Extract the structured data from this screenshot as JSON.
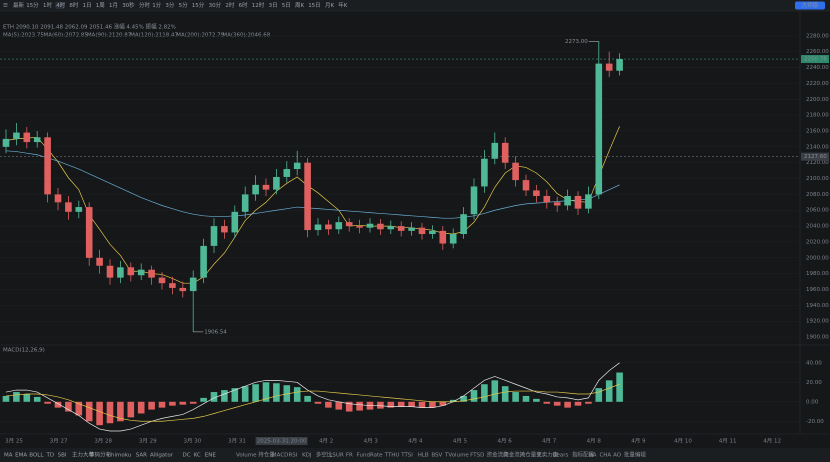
{
  "toolbar": {
    "items": [
      "最新",
      "15分",
      "1时",
      "4时",
      "8时",
      "1日",
      "1周",
      "1月",
      "30秒",
      "分时",
      "1分",
      "3分",
      "5分",
      "15分",
      "30分",
      "2时",
      "6时",
      "12时",
      "3日",
      "5日",
      "周K",
      "15日",
      "月K",
      "年K"
    ],
    "active": 3,
    "button": "大师版"
  },
  "legend": {
    "summary": "ETH 2090.10  2091.48  2062.09  2051.46  涨幅 4.45%  振幅 2.82%",
    "ma_entries": [
      {
        "text": "MA(5):2023.75",
        "color": "#e6c84a"
      },
      {
        "text": "MA(60):2072.85",
        "color": "#d86fb0"
      },
      {
        "text": "MA(90):2120.87",
        "color": "#c9c36a"
      },
      {
        "text": "MA(120):2118.47",
        "color": "#6ab0d8"
      },
      {
        "text": "MA(200):2072.79",
        "color": "#8ad0a0"
      },
      {
        "text": "MA(360):2046.68",
        "color": "#e0843c"
      }
    ]
  },
  "chart_data": [
    {
      "type": "candlestick",
      "up_color": "#4fb896",
      "down_color": "#e0605f",
      "ylim": [
        1890,
        2300
      ],
      "yticks": [
        {
          "value": 1900,
          "label": "1900.00"
        },
        {
          "value": 1920,
          "label": "1920.00"
        },
        {
          "value": 1940,
          "label": "1940.00"
        },
        {
          "value": 1960,
          "label": "1960.00"
        },
        {
          "value": 1980,
          "label": "1980.00"
        },
        {
          "value": 2000,
          "label": "2000.00"
        },
        {
          "value": 2020,
          "label": "2020.00"
        },
        {
          "value": 2040,
          "label": "2040.00"
        },
        {
          "value": 2060,
          "label": "2060.00"
        },
        {
          "value": 2080,
          "label": "2080.00"
        },
        {
          "value": 2100,
          "label": "2100.00"
        },
        {
          "value": 2120,
          "label": "2120.00"
        },
        {
          "value": 2140,
          "label": "2140.00"
        },
        {
          "value": 2160,
          "label": "2160.00"
        },
        {
          "value": 2180,
          "label": "2180.00"
        },
        {
          "value": 2200,
          "label": "2200.00"
        },
        {
          "value": 2220,
          "label": "2220.00"
        },
        {
          "value": 2240,
          "label": "2240.00"
        },
        {
          "value": 2260,
          "label": "2260.00"
        },
        {
          "value": 2280,
          "label": "2280.00"
        }
      ],
      "opens": [
        2140,
        2150,
        2158,
        2146,
        2152,
        2080,
        2070,
        2058,
        2064,
        2000,
        1990,
        1975,
        1988,
        1978,
        1985,
        1975,
        1968,
        1962,
        1958,
        1975,
        2015,
        2040,
        2032,
        2058,
        2080,
        2092,
        2086,
        2102,
        2112,
        2120,
        2035,
        2042,
        2036,
        2045,
        2040,
        2038,
        2043,
        2036,
        2040,
        2034,
        2038,
        2030,
        2034,
        2018,
        2030,
        2055,
        2090,
        2125,
        2145,
        2120,
        2098,
        2085,
        2078,
        2070,
        2066,
        2078,
        2062,
        2080,
        2245,
        2236
      ],
      "highs": [
        2162,
        2170,
        2165,
        2160,
        2158,
        2088,
        2078,
        2072,
        2070,
        2010,
        1998,
        1996,
        1994,
        1993,
        1990,
        1982,
        1976,
        1970,
        1984,
        2024,
        2050,
        2048,
        2066,
        2090,
        2104,
        2100,
        2112,
        2122,
        2135,
        2126,
        2050,
        2048,
        2052,
        2050,
        2048,
        2050,
        2049,
        2047,
        2046,
        2045,
        2044,
        2041,
        2040,
        2037,
        2064,
        2100,
        2136,
        2158,
        2152,
        2128,
        2105,
        2092,
        2086,
        2077,
        2086,
        2084,
        2090,
        2273,
        2260,
        2258
      ],
      "lows": [
        2132,
        2142,
        2138,
        2139,
        2070,
        2060,
        2048,
        2050,
        1990,
        1980,
        1966,
        1968,
        1970,
        1972,
        1966,
        1960,
        1954,
        1950,
        1906.54,
        1968,
        2006,
        2024,
        2025,
        2050,
        2072,
        2078,
        2080,
        2095,
        2104,
        2026,
        2028,
        2029,
        2030,
        2033,
        2031,
        2032,
        2029,
        2030,
        2027,
        2028,
        2023,
        2024,
        2010,
        2012,
        2024,
        2048,
        2082,
        2118,
        2112,
        2090,
        2078,
        2070,
        2062,
        2058,
        2060,
        2054,
        2056,
        2074,
        2228,
        2230
      ],
      "closes": [
        2150,
        2158,
        2146,
        2152,
        2080,
        2070,
        2058,
        2064,
        2000,
        1990,
        1975,
        1988,
        1978,
        1985,
        1975,
        1968,
        1962,
        1958,
        1975,
        2015,
        2040,
        2032,
        2058,
        2080,
        2092,
        2086,
        2102,
        2112,
        2120,
        2035,
        2042,
        2036,
        2045,
        2040,
        2038,
        2043,
        2036,
        2040,
        2034,
        2038,
        2030,
        2034,
        2018,
        2030,
        2055,
        2090,
        2125,
        2145,
        2120,
        2098,
        2085,
        2078,
        2070,
        2066,
        2078,
        2062,
        2080,
        2245,
        2236,
        2250.76
      ],
      "ma": [
        {
          "name": "MA(5)",
          "color": "#e6c84a",
          "values": [
            2148,
            2150,
            2151,
            2152,
            2137,
            2121,
            2101,
            2086,
            2054,
            2036,
            2017,
            2003,
            1983,
            1983,
            1980,
            1979,
            1974,
            1968,
            1968,
            1976,
            1992,
            2006,
            2026,
            2047,
            2060,
            2070,
            2084,
            2094,
            2102,
            2091,
            2082,
            2071,
            2060,
            2040,
            2041,
            2040,
            2040,
            2040,
            2038,
            2038,
            2036,
            2035,
            2031,
            2030,
            2033,
            2045,
            2064,
            2089,
            2107,
            2116,
            2114,
            2107,
            2096,
            2081,
            2073,
            2071,
            2070,
            2103,
            2135,
            2166
          ]
        },
        {
          "name": "MA(120)",
          "color": "#6ab0d8",
          "values": [
            2135,
            2134,
            2132,
            2130,
            2126,
            2122,
            2117,
            2112,
            2106,
            2100,
            2094,
            2088,
            2082,
            2076,
            2071,
            2066,
            2062,
            2058,
            2055,
            2053,
            2052,
            2052,
            2053,
            2054,
            2056,
            2058,
            2060,
            2062,
            2064,
            2063,
            2062,
            2061,
            2060,
            2059,
            2058,
            2057,
            2056,
            2055,
            2054,
            2053,
            2052,
            2051,
            2050,
            2050,
            2051,
            2053,
            2056,
            2060,
            2063,
            2066,
            2068,
            2069,
            2070,
            2071,
            2072,
            2073,
            2074,
            2080,
            2086,
            2092
          ]
        }
      ],
      "high_label": "2273.00",
      "low_label": "1906.54",
      "last_price": {
        "value": 2250.76,
        "label": "2250.76"
      },
      "cursor_price": {
        "value": 2127.6,
        "label": "2127.60"
      },
      "date_labels": [
        "3月 25",
        "3月 27",
        "3月 28",
        "3月 29",
        "3月 30",
        "3月 31",
        "2025-03-31 20:00",
        "4月 2",
        "4月 3",
        "4月 4",
        "4月 5",
        "4月 6",
        "4月 7",
        "4月 8",
        "4月 9",
        "4月 10",
        "4月 11",
        "4月 12"
      ],
      "cursor_date_index": 6
    },
    {
      "type": "macd",
      "title": "MACD(12,26,9)",
      "ylim": [
        -31,
        48
      ],
      "yticks": [
        {
          "value": -20,
          "label": "-20.00"
        },
        {
          "value": 0,
          "label": "0.00"
        },
        {
          "value": 20,
          "label": "20.00"
        },
        {
          "value": 40,
          "label": "40.00"
        }
      ],
      "up_color": "#4fb896",
      "down_color": "#e0605f",
      "values": [
        6,
        10,
        8,
        5,
        -2,
        -6,
        -10,
        -14,
        -20,
        -24,
        -22,
        -20,
        -16,
        -12,
        -8,
        -6,
        -4,
        -3,
        -2,
        4,
        10,
        12,
        14,
        16,
        18,
        20,
        19,
        17,
        15,
        6,
        -2,
        -6,
        -8,
        -10,
        -9,
        -8,
        -7,
        -6,
        -5,
        -5,
        -6,
        -6,
        -4,
        2,
        6,
        12,
        18,
        22,
        16,
        10,
        6,
        3,
        -2,
        -4,
        -6,
        -4,
        -2,
        14,
        22,
        30
      ],
      "series": [
        {
          "name": "DIF",
          "color": "#e8e8e8",
          "values": [
            10,
            12,
            12,
            10,
            4,
            -2,
            -8,
            -14,
            -22,
            -28,
            -30,
            -30,
            -28,
            -24,
            -20,
            -17,
            -15,
            -13,
            -8,
            -2,
            4,
            8,
            12,
            16,
            20,
            22,
            22,
            21,
            20,
            12,
            6,
            2,
            0,
            -2,
            -3,
            -4,
            -4,
            -5,
            -5,
            -5,
            -6,
            -6,
            -4,
            0,
            6,
            14,
            22,
            26,
            22,
            18,
            14,
            10,
            8,
            5,
            4,
            2,
            4,
            22,
            32,
            40
          ]
        },
        {
          "name": "DEA",
          "color": "#e6c84a",
          "values": [
            6,
            7,
            8,
            8,
            7,
            5,
            2,
            -2,
            -6,
            -10,
            -14,
            -17,
            -19,
            -20,
            -20,
            -20,
            -19,
            -18,
            -17,
            -15,
            -12,
            -9,
            -6,
            -3,
            0,
            3,
            6,
            8,
            10,
            11,
            11,
            10,
            9,
            8,
            7,
            6,
            5,
            4,
            3,
            2,
            1,
            0,
            0,
            0,
            1,
            3,
            5,
            8,
            10,
            11,
            11,
            11,
            10,
            10,
            9,
            8,
            8,
            10,
            14,
            18
          ]
        }
      ]
    }
  ],
  "bottom_toolbar": {
    "left": [
      "MA",
      "EMA",
      "BOLL",
      "TD",
      "SBI",
      "主力大单",
      "筹码分布",
      "Ichimoku",
      "SAR",
      "Alligator",
      "DC",
      "KC",
      "ENE"
    ],
    "right": [
      "Volume",
      "持仓量",
      "MACD",
      "RSI",
      "KDJ",
      "多空比",
      "LSUR",
      "FR",
      "FundRate",
      "TTHU",
      "TTSI",
      "HLB",
      "BSV",
      "TVolume",
      "FTSD",
      "资金流向",
      "资金流入",
      "持仓量变",
      "买卖力度",
      "Bears",
      "指标配置",
      "HA",
      "CHA",
      "AO",
      "批量编辑"
    ],
    "active_right": 2
  }
}
